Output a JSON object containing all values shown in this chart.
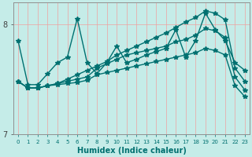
{
  "xlabel": "Humidex (Indice chaleur)",
  "background_color": "#c5ece8",
  "grid_color": "#f0a0a0",
  "line_color": "#007070",
  "line_width": 1.0,
  "marker": "*",
  "marker_size": 4,
  "series": {
    "spiky": [
      7.85,
      7.45,
      7.45,
      7.55,
      7.65,
      7.7,
      8.05,
      7.65,
      7.55,
      7.65,
      7.8,
      7.65,
      7.68,
      7.72,
      7.75,
      7.78,
      7.95,
      7.7,
      7.85,
      8.1,
      7.95,
      7.85,
      7.65,
      7.58
    ],
    "trend_up": [
      7.48,
      7.42,
      7.42,
      7.44,
      7.46,
      7.5,
      7.54,
      7.58,
      7.62,
      7.66,
      7.72,
      7.76,
      7.8,
      7.84,
      7.88,
      7.92,
      7.97,
      8.02,
      8.06,
      8.12,
      8.1,
      8.04,
      7.6,
      7.48
    ],
    "trend_flat": [
      7.48,
      7.42,
      7.42,
      7.44,
      7.46,
      7.48,
      7.5,
      7.52,
      7.6,
      7.64,
      7.68,
      7.72,
      7.74,
      7.76,
      7.78,
      7.8,
      7.84,
      7.86,
      7.9,
      7.96,
      7.94,
      7.88,
      7.52,
      7.4
    ],
    "trend_down": [
      7.48,
      7.42,
      7.42,
      7.44,
      7.45,
      7.46,
      7.47,
      7.49,
      7.54,
      7.56,
      7.58,
      7.6,
      7.62,
      7.64,
      7.66,
      7.68,
      7.7,
      7.72,
      7.74,
      7.78,
      7.76,
      7.72,
      7.44,
      7.34
    ]
  },
  "ylim": [
    7.1,
    8.2
  ],
  "yticks": [
    7.0,
    8.0
  ],
  "ytick_labels": [
    "7",
    "8"
  ],
  "xlim": [
    -0.5,
    23.5
  ],
  "x_ticks": [
    0,
    1,
    2,
    3,
    4,
    5,
    6,
    7,
    8,
    9,
    10,
    11,
    12,
    13,
    14,
    15,
    16,
    17,
    18,
    19,
    20,
    21,
    22,
    23
  ],
  "figsize": [
    3.2,
    2.0
  ],
  "dpi": 100
}
